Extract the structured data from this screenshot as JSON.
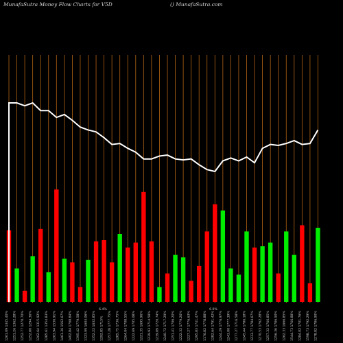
{
  "header": {
    "title": "MunafaSutra  Money Flow  Charts for V5D",
    "site": "() MunafaSutra.com"
  },
  "colors": {
    "background": "#000000",
    "gridline": "#b46414",
    "up_bar": "#00ee00",
    "down_bar": "#ff0000",
    "price_line": "#ffffff"
  },
  "chart_data": {
    "type": "bar",
    "title": "MunafaSutra  Money Flow  Charts for V5D",
    "legend": "none",
    "grid": "vertical",
    "bars": [
      {
        "color": "red",
        "value": 0.58
      },
      {
        "color": "green",
        "value": 0.27
      },
      {
        "color": "red",
        "value": 0.09
      },
      {
        "color": "green",
        "value": 0.37
      },
      {
        "color": "red",
        "value": 0.59
      },
      {
        "color": "green",
        "value": 0.24
      },
      {
        "color": "red",
        "value": 0.91
      },
      {
        "color": "green",
        "value": 0.35
      },
      {
        "color": "red",
        "value": 0.32
      },
      {
        "color": "red",
        "value": 0.12
      },
      {
        "color": "green",
        "value": 0.34
      },
      {
        "color": "red",
        "value": 0.49
      },
      {
        "color": "red",
        "value": 0.5
      },
      {
        "color": "red",
        "value": 0.32
      },
      {
        "color": "green",
        "value": 0.55
      },
      {
        "color": "red",
        "value": 0.44
      },
      {
        "color": "red",
        "value": 0.48
      },
      {
        "color": "red",
        "value": 0.89
      },
      {
        "color": "red",
        "value": 0.49
      },
      {
        "color": "green",
        "value": 0.12
      },
      {
        "color": "red",
        "value": 0.23
      },
      {
        "color": "green",
        "value": 0.38
      },
      {
        "color": "green",
        "value": 0.36
      },
      {
        "color": "red",
        "value": 0.17
      },
      {
        "color": "red",
        "value": 0.29
      },
      {
        "color": "red",
        "value": 0.57
      },
      {
        "color": "red",
        "value": 0.79
      },
      {
        "color": "green",
        "value": 0.74
      },
      {
        "color": "green",
        "value": 0.27
      },
      {
        "color": "green",
        "value": 0.22
      },
      {
        "color": "green",
        "value": 0.57
      },
      {
        "color": "red",
        "value": 0.44
      },
      {
        "color": "green",
        "value": 0.45
      },
      {
        "color": "green",
        "value": 0.48
      },
      {
        "color": "red",
        "value": 0.23
      },
      {
        "color": "green",
        "value": 0.57
      },
      {
        "color": "green",
        "value": 0.38
      },
      {
        "color": "red",
        "value": 0.62
      },
      {
        "color": "red",
        "value": 0.15
      },
      {
        "color": "green",
        "value": 0.6
      }
    ],
    "price_line": [
      1.0,
      1.0,
      0.985,
      1.0,
      0.96,
      0.96,
      0.925,
      0.94,
      0.91,
      0.875,
      0.86,
      0.85,
      0.82,
      0.785,
      0.79,
      0.765,
      0.745,
      0.71,
      0.71,
      0.725,
      0.73,
      0.71,
      0.705,
      0.71,
      0.68,
      0.655,
      0.645,
      0.7,
      0.715,
      0.7,
      0.72,
      0.69,
      0.765,
      0.785,
      0.78,
      0.79,
      0.805,
      0.785,
      0.79,
      0.86
    ],
    "x_labels": [
      "1261.09 1345.40%",
      "1251.26 1362.28%",
      "1252.77 1270.70%",
      "1252.80 1294.36%",
      "1262.64 1315.92%",
      "1285.61 1354.83%",
      "1263.94 1536.91%",
      "1461.36 1562.67%",
      "1402.84 1768.84%",
      "1395.42 1779.58%",
      "1323.99 1604.06%",
      "1352.22 1632.85%",
      "1292.85 1715%",
      "1257.28 1777.75%",
      "1285.75 1736.75%",
      "1264.04 1708.55%",
      "1222.69 1705.08%",
      "1221.35 1695.96%",
      "1239.93 1714.58%",
      "1239.89 1720.74%",
      "1240.72 1717.29%",
      "1251.41 1706.20%",
      "1222.32 1779.26%",
      "1227.27 1776.63%",
      "1295.83 1741.47%",
      "1176.82 1778.88%",
      "1282.64 1791.42%",
      "1244.29 1776.97%",
      "1243.00 1777.39%",
      "1277.27 1716.58%",
      "1245.44 1786.18%",
      "1233.77 1784.67%",
      "1270.53 1762.28%",
      "1257.32 1766.85%",
      "1256.36 1786.90%",
      "1262.33 1666.85%",
      "1544.73 1766.88%",
      "1284.02 1701.76%",
      "1598.73 1792.29%",
      "1278.82 1786.90%"
    ],
    "annotations": [
      "6.4%",
      "6.0%"
    ]
  }
}
